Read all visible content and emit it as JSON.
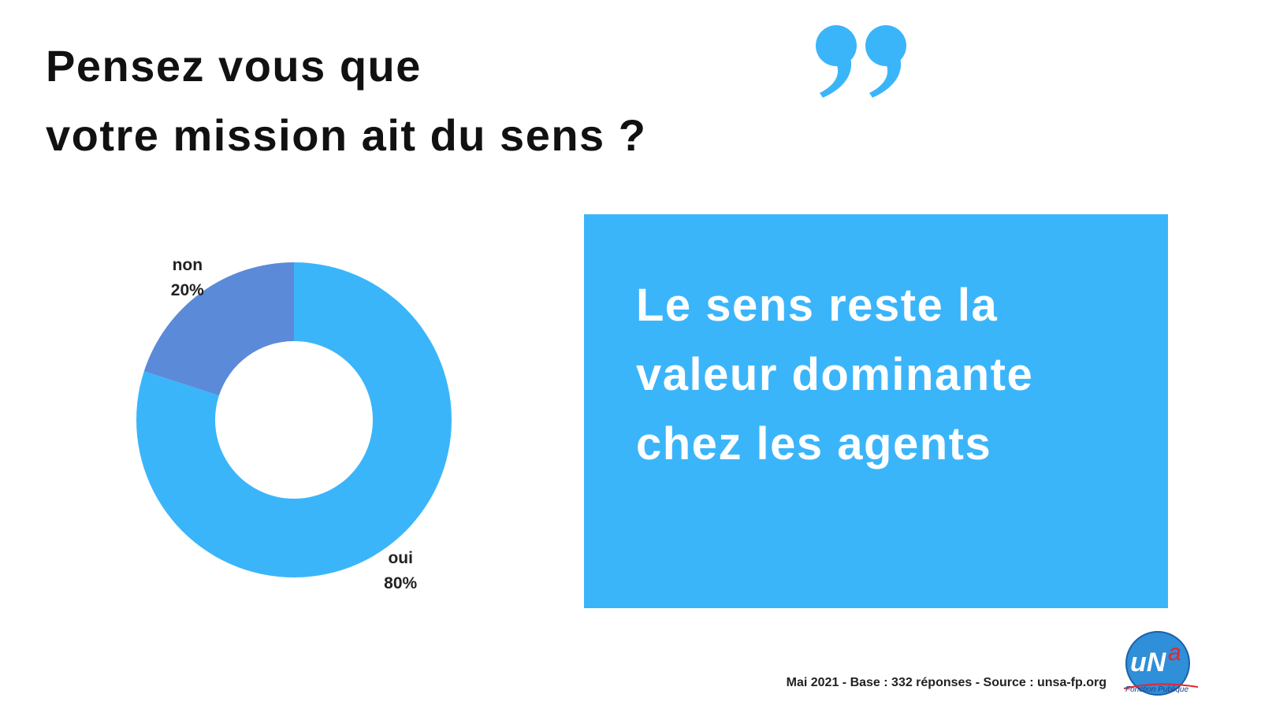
{
  "title": {
    "line1": "Pensez vous que",
    "line2": "votre mission ait du sens ?"
  },
  "chart_data": {
    "type": "pie",
    "variant": "donut",
    "slices": [
      {
        "label": "oui",
        "value": 80,
        "value_label": "80%",
        "color": "#3bb5fa"
      },
      {
        "label": "non",
        "value": 20,
        "value_label": "20%",
        "color": "#5b8ad9"
      }
    ]
  },
  "callout": {
    "lines": [
      "Le sens reste la",
      "valeur dominante",
      "chez les agents"
    ],
    "background": "#3bb5fa"
  },
  "footer": {
    "source": "Mai 2021 - Base : 332 réponses - Source : unsa-fp.org"
  },
  "logo": {
    "mark": "unsa",
    "subtitle": "Fonction Publique"
  },
  "colors": {
    "accent": "#3bb5fa",
    "secondary": "#5b8ad9",
    "text": "#111111"
  },
  "icons": {
    "quote": "closing-quote-icon"
  }
}
